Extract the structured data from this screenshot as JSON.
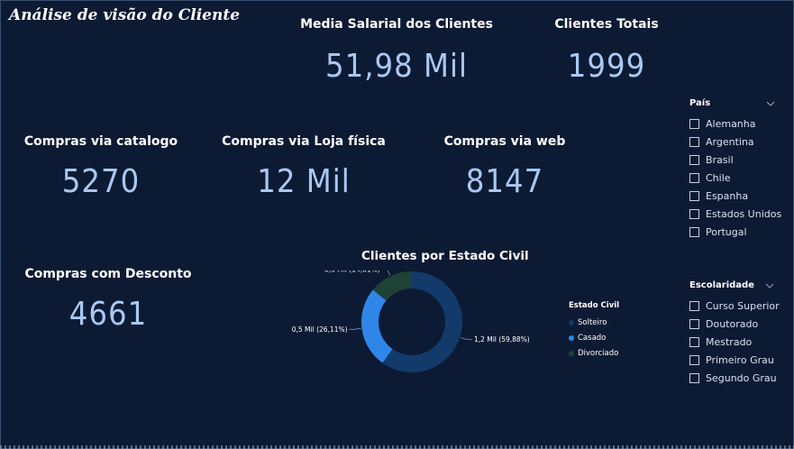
{
  "header": {
    "title": "Análise de visão do Cliente"
  },
  "cards": {
    "media_salarial": {
      "label": "Media Salarial dos Clientes",
      "value": "51,98 Mil"
    },
    "clientes_totais": {
      "label": "Clientes Totais",
      "value": "1999"
    },
    "compras_catalogo": {
      "label": "Compras via catalogo",
      "value": "5270"
    },
    "compras_loja": {
      "label": "Compras via Loja física",
      "value": "12 Mil"
    },
    "compras_web": {
      "label": "Compras via web",
      "value": "8147"
    },
    "compras_desconto": {
      "label": "Compras com Desconto",
      "value": "4661"
    }
  },
  "slicer_pais": {
    "title": "País",
    "items": [
      "Alemanha",
      "Argentina",
      "Brasil",
      "Chile",
      "Espanha",
      "Estados Unidos",
      "Portugal"
    ]
  },
  "slicer_escolaridade": {
    "title": "Escolaridade",
    "items": [
      "Curso Superior",
      "Doutorado",
      "Mestrado",
      "Primeiro Grau",
      "Segundo Grau"
    ]
  },
  "colors": {
    "background": "#0c1b33",
    "value_text": "#a9c8f2",
    "solteiro": "#123a6b",
    "casado": "#2f86e8",
    "divorciado": "#1f4236"
  },
  "chart_data": {
    "type": "pie",
    "title": "Clientes por Estado Civil",
    "legend_title": "Estado Civil",
    "legend_position": "right",
    "categories": [
      "Solteiro",
      "Casado",
      "Divorciado"
    ],
    "values": [
      59.88,
      26.11,
      14.01
    ],
    "labels": [
      "1,2 Mil (59,88%)",
      "0,5 Mil (26,11%)",
      "0,3 Mil (14,01%)"
    ],
    "colors": [
      "#123a6b",
      "#2f86e8",
      "#1f4236"
    ]
  }
}
